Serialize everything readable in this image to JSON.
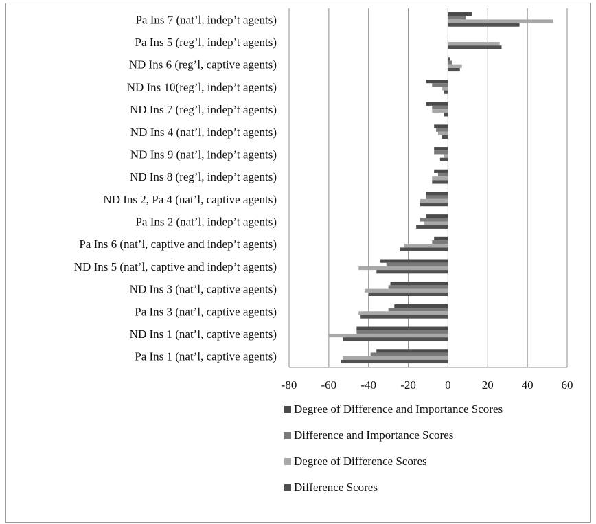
{
  "chart_data": {
    "type": "bar",
    "orientation": "horizontal",
    "title": "",
    "xlabel": "",
    "ylabel": "",
    "xlim": [
      -80,
      60
    ],
    "x_ticks": [
      -80,
      -60,
      -40,
      -20,
      0,
      20,
      40,
      60
    ],
    "grid": true,
    "legend_position": "bottom",
    "categories": [
      "Pa Ins 7 (nat’l, indep’t agents)",
      "Pa Ins 5 (reg’l, indep’t agents)",
      "ND Ins 6 (reg’l, captive agents)",
      "ND Ins 10(reg’l, indep’t agents)",
      "ND Ins 7 (reg’l, indep’t agents)",
      "ND Ins 4 (nat’l, indep’t agents)",
      "ND Ins 9 (nat’l, indep’t agents)",
      "ND Ins 8 (reg’l, indep’t agents)",
      "ND Ins 2, Pa 4 (nat’l, captive agents)",
      "Pa Ins 2 (nat’l, indep’t agents)",
      "Pa Ins 6 (nat’l, captive and indep’t agents)",
      "ND Ins 5 (nat’l, captive and indep’t agents)",
      "ND Ins 3 (nat’l, captive agents)",
      "Pa Ins 3 (nat’l, captive agents)",
      "ND Ins 1 (nat’l, captive agents)",
      "Pa Ins 1 (nat’l, captive agents)"
    ],
    "series": [
      {
        "name": "Degree of Difference and Importance Scores",
        "color": "#4a4a4a",
        "values": [
          12,
          0,
          1,
          -11,
          -11,
          -7,
          -7,
          -7,
          -11,
          -11,
          -7,
          -34,
          -29,
          -27,
          -46,
          -36
        ]
      },
      {
        "name": "Difference and Importance Scores",
        "color": "#7a7a7a",
        "values": [
          9,
          0,
          2,
          -8,
          -8,
          -6,
          -7,
          -5,
          -11,
          -14,
          -8,
          -31,
          -30,
          -30,
          -46,
          -39
        ]
      },
      {
        "name": "Degree of Difference Scores",
        "color": "#a8a8a8",
        "values": [
          53,
          26,
          7,
          -3,
          -8,
          -5,
          -2,
          -8,
          -14,
          -12,
          -22,
          -45,
          -42,
          -45,
          -60,
          -53
        ]
      },
      {
        "name": "Difference Scores",
        "color": "#505050",
        "values": [
          36,
          27,
          6,
          -2,
          -2,
          -3,
          -4,
          -8,
          -14,
          -16,
          -24,
          -36,
          -40,
          -44,
          -53,
          -54
        ]
      }
    ],
    "legend_order": [
      "Degree of Difference and Importance Scores",
      "Difference and Importance Scores",
      "Degree of Difference Scores",
      "Difference Scores"
    ]
  }
}
